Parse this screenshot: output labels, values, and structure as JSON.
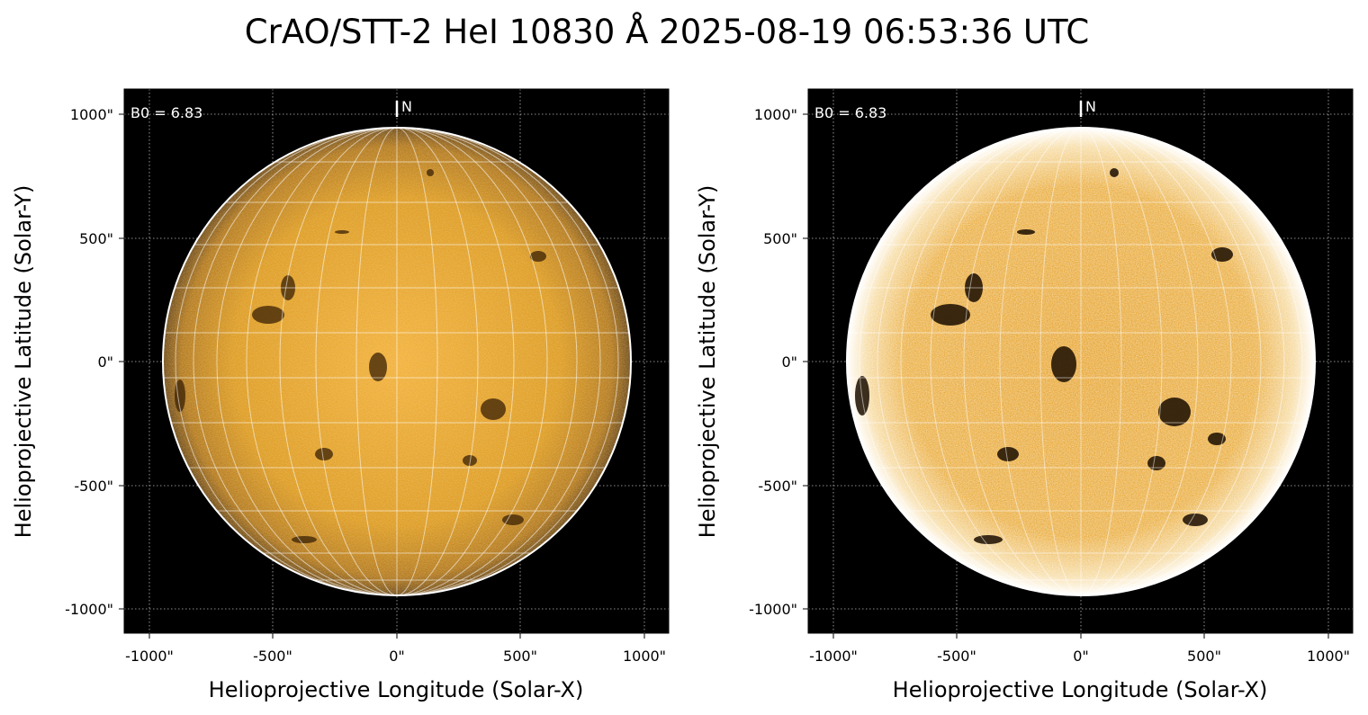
{
  "title": "CrAO/STT-2 HeI 10830 Å 2025-08-19 06:53:36 UTC",
  "colors": {
    "background": "#000000",
    "disk_base": "#d98a0f",
    "disk_bright": "#f2b13c",
    "grid_line": "#ffffff",
    "limb": "#ffffff"
  },
  "panels": [
    {
      "id": "left",
      "b0_label": "B0 = 6.83",
      "north_label": "N",
      "xlabel": "Helioprojective Longitude (Solar-X)",
      "ylabel": "Helioprojective Latitude (Solar-Y)",
      "xticks": [
        "-1000\"",
        "-500\"",
        "0\"",
        "500\"",
        "1000\""
      ],
      "yticks": [
        "1000\"",
        "500\"",
        "0\"",
        "-500\"",
        "-1000\""
      ],
      "style": "normal"
    },
    {
      "id": "right",
      "b0_label": "B0 = 6.83",
      "north_label": "N",
      "xlabel": "Helioprojective Longitude (Solar-X)",
      "ylabel": "Helioprojective Latitude (Solar-Y)",
      "xticks": [
        "-1000\"",
        "-500\"",
        "0\"",
        "500\"",
        "1000\""
      ],
      "yticks": [
        "1000\"",
        "500\"",
        "0\"",
        "-500\"",
        "-1000\""
      ],
      "style": "enhanced"
    }
  ]
}
